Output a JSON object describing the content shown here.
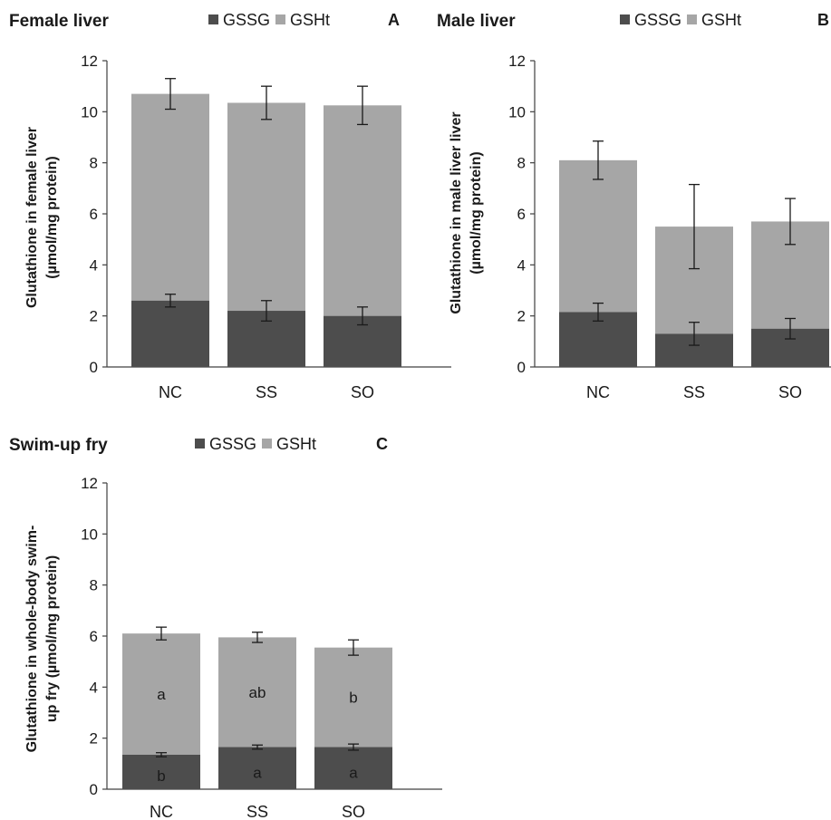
{
  "chart_data": [
    {
      "type": "bar",
      "stacked": true,
      "title": "Female liver",
      "panel": "A",
      "ylabel": [
        "Glutathione in female liver",
        "(µmol/mg protein)"
      ],
      "ylim": [
        0,
        12
      ],
      "yticks": [
        0,
        2,
        4,
        6,
        8,
        10,
        12
      ],
      "categories": [
        "NC",
        "SS",
        "SO"
      ],
      "legend": [
        "GSSG",
        "GSHt"
      ],
      "colors": {
        "GSSG": "#4d4d4d",
        "GSHt": "#a6a6a6"
      },
      "series": [
        {
          "name": "GSSG",
          "values": [
            2.6,
            2.2,
            2.0
          ],
          "errors": [
            0.25,
            0.4,
            0.35
          ],
          "labels": [
            "",
            "",
            ""
          ]
        },
        {
          "name": "GSHt",
          "totals": [
            10.7,
            10.35,
            10.25
          ],
          "errors": [
            0.6,
            0.65,
            0.75
          ],
          "labels": [
            "",
            "",
            ""
          ]
        }
      ]
    },
    {
      "type": "bar",
      "stacked": true,
      "title": "Male liver",
      "panel": "B",
      "ylabel": [
        "Glutathione in male liver liver",
        "(µmol/mg protein)"
      ],
      "ylim": [
        0,
        12
      ],
      "yticks": [
        0,
        2,
        4,
        6,
        8,
        10,
        12
      ],
      "categories": [
        "NC",
        "SS",
        "SO"
      ],
      "legend": [
        "GSSG",
        "GSHt"
      ],
      "colors": {
        "GSSG": "#4d4d4d",
        "GSHt": "#a6a6a6"
      },
      "series": [
        {
          "name": "GSSG",
          "values": [
            2.15,
            1.3,
            1.5
          ],
          "errors": [
            0.35,
            0.45,
            0.4
          ],
          "labels": [
            "",
            "",
            ""
          ]
        },
        {
          "name": "GSHt",
          "totals": [
            8.1,
            5.5,
            5.7
          ],
          "errors": [
            0.75,
            1.65,
            0.9
          ],
          "labels": [
            "",
            "",
            ""
          ]
        }
      ]
    },
    {
      "type": "bar",
      "stacked": true,
      "title": "Swim-up fry",
      "panel": "C",
      "ylabel": [
        "Glutathione in whole-body swim-",
        "up fry (µmol/mg protein)"
      ],
      "ylim": [
        0,
        12
      ],
      "yticks": [
        0,
        2,
        4,
        6,
        8,
        10,
        12
      ],
      "categories": [
        "NC",
        "SS",
        "SO"
      ],
      "legend": [
        "GSSG",
        "GSHt"
      ],
      "colors": {
        "GSSG": "#4d4d4d",
        "GSHt": "#a6a6a6"
      },
      "series": [
        {
          "name": "GSSG",
          "values": [
            1.35,
            1.65,
            1.65
          ],
          "errors": [
            0.08,
            0.08,
            0.12
          ],
          "labels": [
            "b",
            "a",
            "a"
          ]
        },
        {
          "name": "GSHt",
          "totals": [
            6.1,
            5.95,
            5.55
          ],
          "errors": [
            0.25,
            0.2,
            0.3
          ],
          "labels": [
            "a",
            "ab",
            "b"
          ]
        }
      ]
    }
  ]
}
